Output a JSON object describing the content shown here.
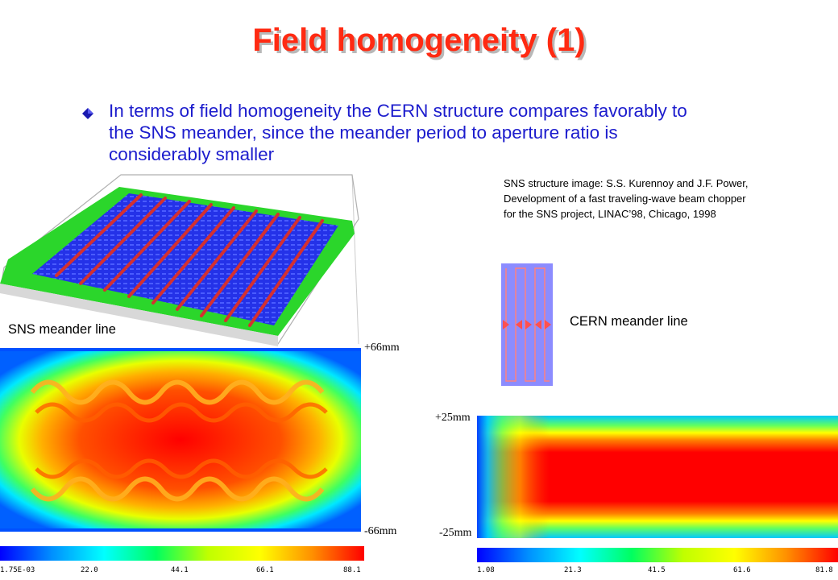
{
  "title": "Field homogeneity (1)",
  "bullet": {
    "text": "In terms of field homogeneity the CERN structure compares favorably to the SNS meander, since the meander period to aperture ratio is considerably smaller"
  },
  "credit": {
    "line1": "SNS structure image: S.S. Kurennoy and J.F. Power,",
    "line2": "Development of a fast traveling-wave beam chopper",
    "line3": "for the SNS project, LINAC’98, Chicago, 1998"
  },
  "labels": {
    "sns": "SNS meander line",
    "cern": "CERN meander line"
  },
  "sns_plot": {
    "top_dim": "+66mm",
    "bottom_dim": "-66mm",
    "scale_ticks": [
      "1.75E-03",
      "22.0",
      "44.1",
      "66.1",
      "88.1"
    ]
  },
  "cern_plot": {
    "top_dim": "+25mm",
    "bottom_dim": "-25mm",
    "scale_ticks": [
      "1.08",
      "21.3",
      "41.5",
      "61.6",
      "81.8"
    ]
  },
  "colors": {
    "title": "#ff2a12",
    "bullet_text": "#1c1ccd",
    "bullet_icon": "#1a1ab0"
  }
}
